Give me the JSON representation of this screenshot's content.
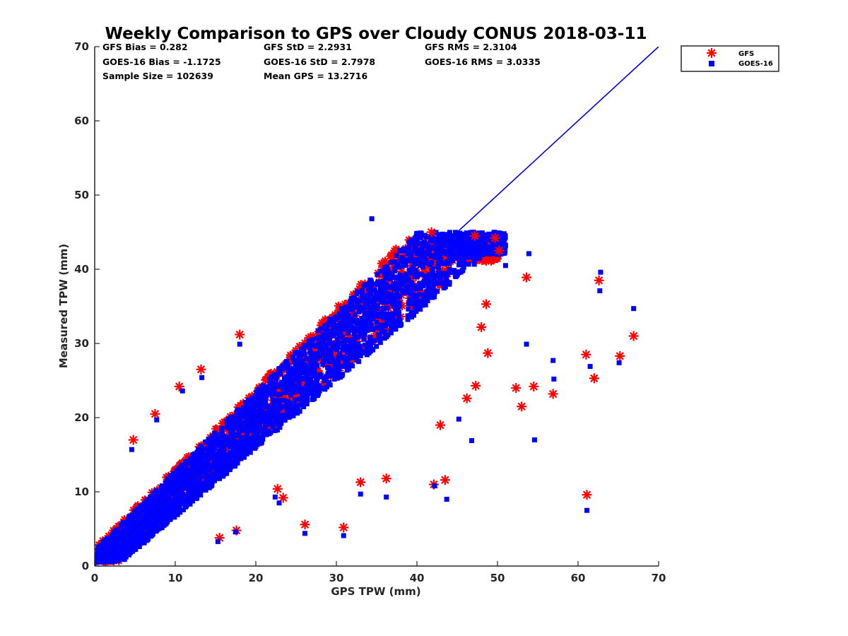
{
  "chart_data": {
    "type": "scatter",
    "title": "Weekly Comparison to GPS over Cloudy CONUS 2018-03-11",
    "xlabel": "GPS TPW (mm)",
    "ylabel": "Measured TPW (mm)",
    "xlim": [
      0,
      70
    ],
    "ylim": [
      0,
      70
    ],
    "xticks": [
      0,
      10,
      20,
      30,
      40,
      50,
      60,
      70
    ],
    "yticks": [
      0,
      10,
      20,
      30,
      40,
      50,
      60,
      70
    ],
    "grid": false,
    "legend_position": "outside-top-right",
    "reference_line": {
      "name": "1:1 line",
      "x": [
        0,
        70
      ],
      "y": [
        0,
        70
      ],
      "color": "#0000dd"
    },
    "stats": [
      {
        "label": "GFS Bias = 0.282"
      },
      {
        "label": "GFS StD = 2.2931"
      },
      {
        "label": "GFS RMS = 2.3104"
      },
      {
        "label": "GOES-16 Bias = -1.1725"
      },
      {
        "label": "GOES-16 StD = 2.7978"
      },
      {
        "label": "GOES-16 RMS = 3.0335"
      },
      {
        "label": "Sample Size = 102639"
      },
      {
        "label": "Mean GPS = 13.2716"
      }
    ],
    "series": [
      {
        "name": "GFS",
        "marker": "asterisk",
        "color": "#ff0000",
        "outliers": [
          [
            61.1,
            9.6
          ],
          [
            62.6,
            38.5
          ],
          [
            53.6,
            38.9
          ],
          [
            66.9,
            31.0
          ],
          [
            65.2,
            28.3
          ],
          [
            61.0,
            28.5
          ],
          [
            62.0,
            25.3
          ],
          [
            54.5,
            24.2
          ],
          [
            53.0,
            21.5
          ],
          [
            56.9,
            23.2
          ],
          [
            52.3,
            24.0
          ],
          [
            47.3,
            24.3
          ],
          [
            48.8,
            28.7
          ],
          [
            48.0,
            32.2
          ],
          [
            47.2,
            44.5
          ],
          [
            48.6,
            35.3
          ],
          [
            49.7,
            44.2
          ],
          [
            50.2,
            42.5
          ],
          [
            43.5,
            11.6
          ],
          [
            42.1,
            11.0
          ],
          [
            36.2,
            11.8
          ],
          [
            33.0,
            11.3
          ],
          [
            30.9,
            5.2
          ],
          [
            26.1,
            5.6
          ],
          [
            18.0,
            31.2
          ],
          [
            13.2,
            26.5
          ],
          [
            10.5,
            24.2
          ],
          [
            7.5,
            20.5
          ],
          [
            4.8,
            17.0
          ],
          [
            23.4,
            9.2
          ],
          [
            22.7,
            10.4
          ],
          [
            17.6,
            4.8
          ],
          [
            15.5,
            3.8
          ],
          [
            42.9,
            19.0
          ],
          [
            46.2,
            22.6
          ],
          [
            41.8,
            45.0
          ]
        ],
        "band": {
          "x_range": [
            0,
            50
          ],
          "y_offset_low": -3.5,
          "y_offset_high": 4.0,
          "y_max": 44
        }
      },
      {
        "name": "GOES-16",
        "marker": "square",
        "color": "#0000ff",
        "outliers": [
          [
            61.1,
            7.5
          ],
          [
            66.9,
            34.7
          ],
          [
            62.8,
            39.6
          ],
          [
            62.7,
            37.1
          ],
          [
            53.9,
            42.1
          ],
          [
            53.6,
            29.9
          ],
          [
            54.6,
            17.0
          ],
          [
            46.8,
            16.9
          ],
          [
            45.2,
            19.8
          ],
          [
            56.9,
            27.7
          ],
          [
            57.0,
            25.2
          ],
          [
            61.5,
            26.9
          ],
          [
            65.1,
            27.4
          ],
          [
            51.0,
            40.5
          ],
          [
            34.4,
            46.8
          ],
          [
            43.7,
            9.0
          ],
          [
            42.2,
            10.8
          ],
          [
            36.2,
            9.3
          ],
          [
            33.0,
            9.7
          ],
          [
            30.9,
            4.1
          ],
          [
            26.1,
            4.4
          ],
          [
            18.0,
            29.9
          ],
          [
            13.3,
            25.4
          ],
          [
            10.9,
            23.6
          ],
          [
            7.7,
            19.7
          ],
          [
            4.6,
            15.7
          ],
          [
            22.9,
            8.5
          ],
          [
            22.4,
            9.3
          ],
          [
            17.5,
            4.6
          ],
          [
            15.3,
            3.3
          ]
        ],
        "band": {
          "x_range": [
            0,
            51
          ],
          "y_offset_low": -4.2,
          "y_offset_high": 3.5,
          "y_max": 45
        }
      }
    ]
  }
}
